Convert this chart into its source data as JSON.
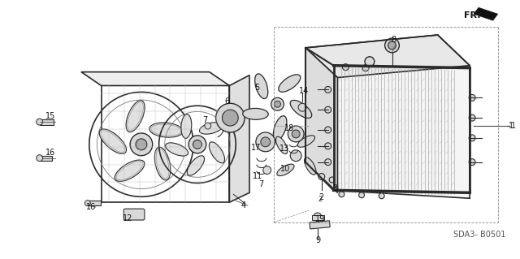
{
  "bg_color": "#ffffff",
  "fig_width": 6.4,
  "fig_height": 3.19,
  "dpi": 100,
  "diagram_code": "SDA3- B0501",
  "fr_label": "FR.",
  "line_color": "#2a2a2a",
  "light_gray": "#d8d8d8",
  "mid_gray": "#aaaaaa",
  "dark_gray": "#555555"
}
